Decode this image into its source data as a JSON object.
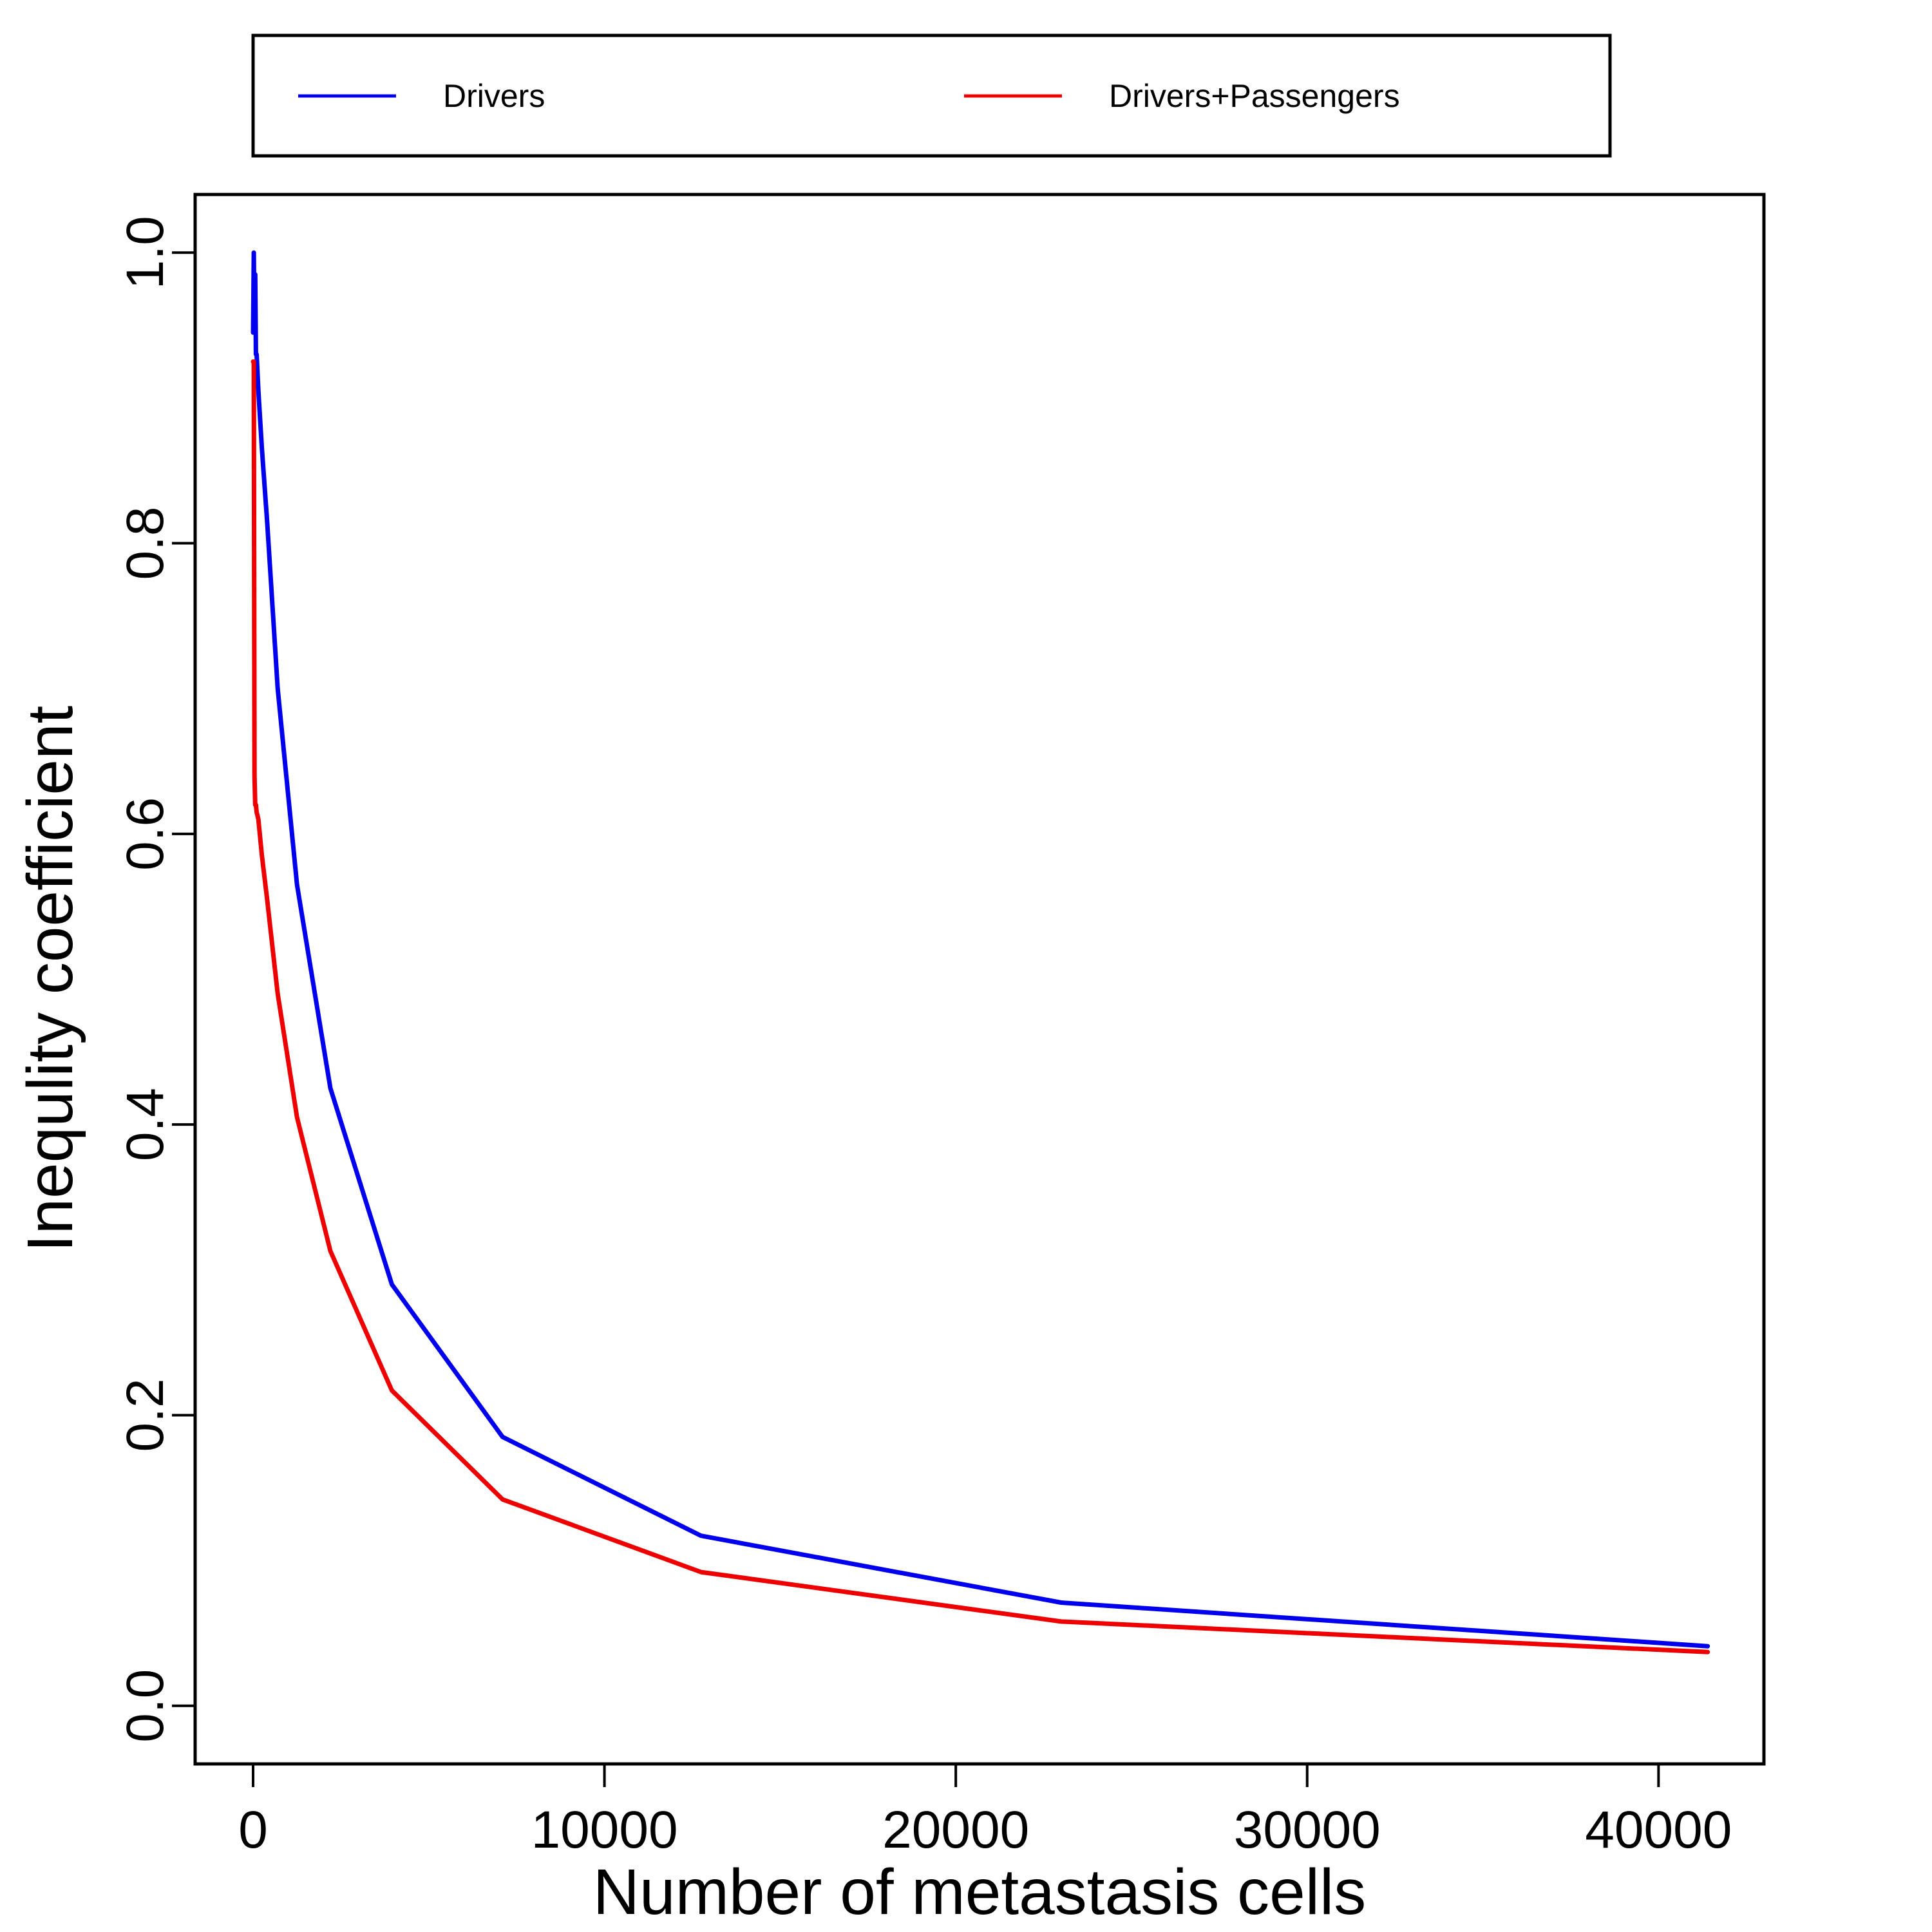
{
  "chart_data": {
    "type": "line",
    "title": "",
    "xlabel": "Number of metastasis cells",
    "ylabel": "Inequlity coefficient",
    "xlim": [
      -1650,
      43000
    ],
    "ylim": [
      -0.04,
      1.04
    ],
    "xticks": [
      0,
      10000,
      20000,
      30000,
      40000
    ],
    "xtick_labels": [
      "0",
      "10000",
      "20000",
      "30000",
      "40000"
    ],
    "yticks": [
      0.0,
      0.2,
      0.4,
      0.6,
      0.8,
      1.0
    ],
    "ytick_labels": [
      "0.0",
      "0.2",
      "0.4",
      "0.6",
      "0.8",
      "1.0"
    ],
    "grid": false,
    "legend_position": "top, outside plot area",
    "series": [
      {
        "name": "Drivers",
        "color": "#0000ee",
        "x": [
          0,
          20,
          40,
          60,
          80,
          100,
          150,
          250,
          400,
          700,
          1250,
          2200,
          3950,
          7100,
          12750,
          23000,
          41400
        ],
        "y": [
          0.945,
          1.0,
          0.945,
          0.985,
          0.93,
          0.93,
          0.905,
          0.865,
          0.815,
          0.7,
          0.565,
          0.425,
          0.29,
          0.185,
          0.117,
          0.071,
          0.041
        ]
      },
      {
        "name": "Drivers+Passengers",
        "color": "#ee0000",
        "x": [
          0,
          20,
          40,
          60,
          80,
          100,
          150,
          250,
          400,
          700,
          1250,
          2200,
          3950,
          7100,
          12750,
          23000,
          41400
        ],
        "y": [
          0.925,
          0.925,
          0.64,
          0.62,
          0.62,
          0.615,
          0.61,
          0.585,
          0.555,
          0.49,
          0.405,
          0.313,
          0.217,
          0.142,
          0.092,
          0.058,
          0.037
        ]
      }
    ]
  }
}
